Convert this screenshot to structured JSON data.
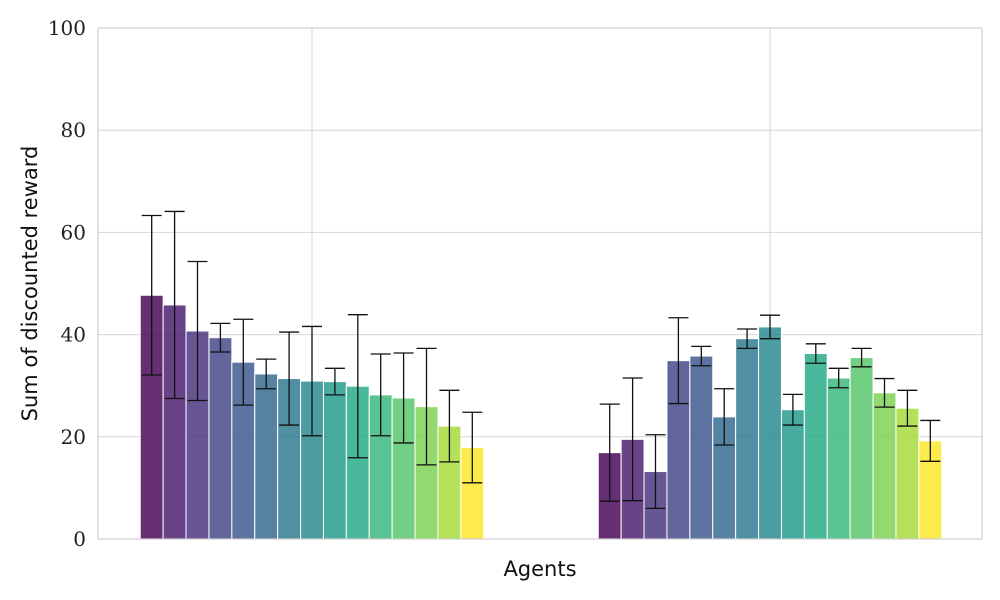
{
  "chart_data": {
    "type": "bar",
    "title": "",
    "xlabel": "Agents",
    "ylabel": "Sum of discounted reward",
    "ylim": [
      0,
      100
    ],
    "yticks": [
      "0",
      "20",
      "40",
      "60",
      "80",
      "100"
    ],
    "grid": true,
    "colormap": "viridis",
    "groups": [
      {
        "values": [
          47.7,
          45.8,
          40.7,
          39.4,
          34.6,
          32.3,
          31.4,
          30.9,
          30.8,
          29.9,
          28.2,
          27.6,
          25.9,
          22.1,
          17.9
        ],
        "errors": [
          15.6,
          18.3,
          13.6,
          2.8,
          8.4,
          2.9,
          9.1,
          10.7,
          2.6,
          14.0,
          8.0,
          8.8,
          11.4,
          7.0,
          6.9
        ]
      },
      {
        "values": [
          16.9,
          19.5,
          13.2,
          34.9,
          35.8,
          23.9,
          39.2,
          41.5,
          25.3,
          36.3,
          31.5,
          35.5,
          28.6,
          25.6,
          19.2
        ],
        "errors": [
          9.5,
          12.0,
          7.2,
          8.4,
          1.9,
          5.5,
          1.9,
          2.3,
          3.0,
          1.9,
          1.9,
          1.8,
          2.8,
          3.5,
          4.0
        ]
      }
    ],
    "colors": [
      "#440154",
      "#481a6c",
      "#472f7d",
      "#414487",
      "#39568c",
      "#31688e",
      "#2a788e",
      "#23888e",
      "#1f988b",
      "#22a884",
      "#35b779",
      "#54c568",
      "#7ad151",
      "#a5db36",
      "#fde725"
    ]
  }
}
